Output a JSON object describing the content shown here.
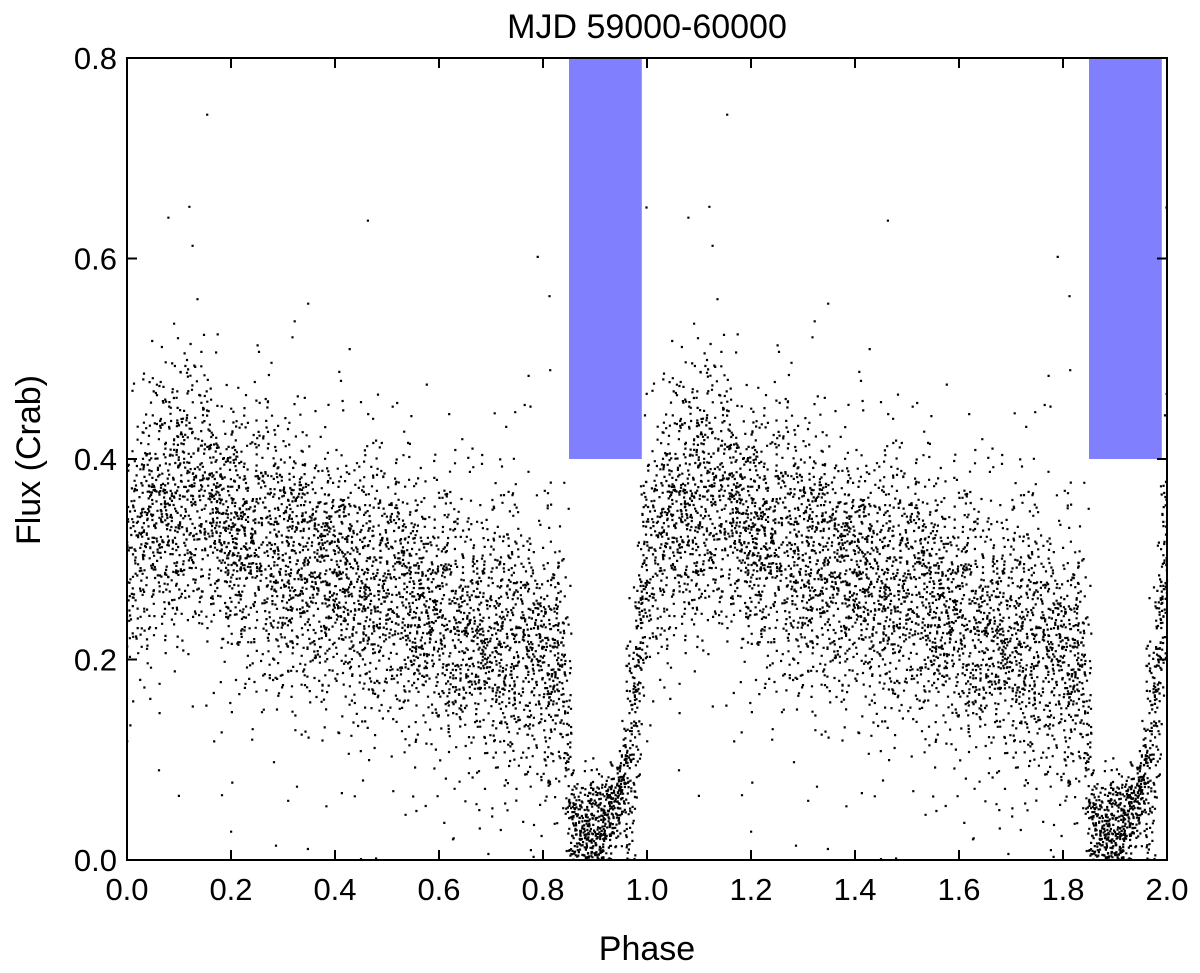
{
  "chart_data": {
    "type": "scatter",
    "title": "MJD 59000-60000",
    "xlabel": "Phase",
    "ylabel": "Flux (Crab)",
    "xlim": [
      0.0,
      2.0
    ],
    "ylim": [
      0.0,
      0.8
    ],
    "xticks": [
      "0.0",
      "0.2",
      "0.4",
      "0.6",
      "0.8",
      "1.0",
      "1.2",
      "1.4",
      "1.6",
      "1.8",
      "2.0"
    ],
    "yticks": [
      "0.0",
      "0.2",
      "0.4",
      "0.6",
      "0.8"
    ],
    "grid": false,
    "legend": "none",
    "colors": {
      "points": "#000000",
      "shaded_region": "#8080ff"
    },
    "shaded_regions": [
      {
        "x": [
          0.85,
          0.99
        ],
        "y": [
          0.4,
          0.8
        ]
      },
      {
        "x": [
          1.85,
          1.99
        ],
        "y": [
          0.4,
          0.8
        ]
      }
    ],
    "folded_period": 1.0,
    "series": [
      {
        "profile": [
          [
            0.0,
            0.3
          ],
          [
            0.05,
            0.34
          ],
          [
            0.1,
            0.37
          ],
          [
            0.15,
            0.36
          ],
          [
            0.2,
            0.33
          ],
          [
            0.25,
            0.32
          ],
          [
            0.3,
            0.3
          ],
          [
            0.35,
            0.29
          ],
          [
            0.4,
            0.285
          ],
          [
            0.45,
            0.275
          ],
          [
            0.5,
            0.27
          ],
          [
            0.55,
            0.26
          ],
          [
            0.6,
            0.245
          ],
          [
            0.65,
            0.235
          ],
          [
            0.7,
            0.225
          ],
          [
            0.75,
            0.21
          ],
          [
            0.8,
            0.2
          ],
          [
            0.84,
            0.19
          ],
          [
            0.86,
            0.04
          ],
          [
            0.9,
            0.03
          ],
          [
            0.94,
            0.05
          ],
          [
            0.97,
            0.11
          ],
          [
            1.0,
            0.3
          ]
        ],
        "points_per_cycle": 5200
      }
    ]
  }
}
